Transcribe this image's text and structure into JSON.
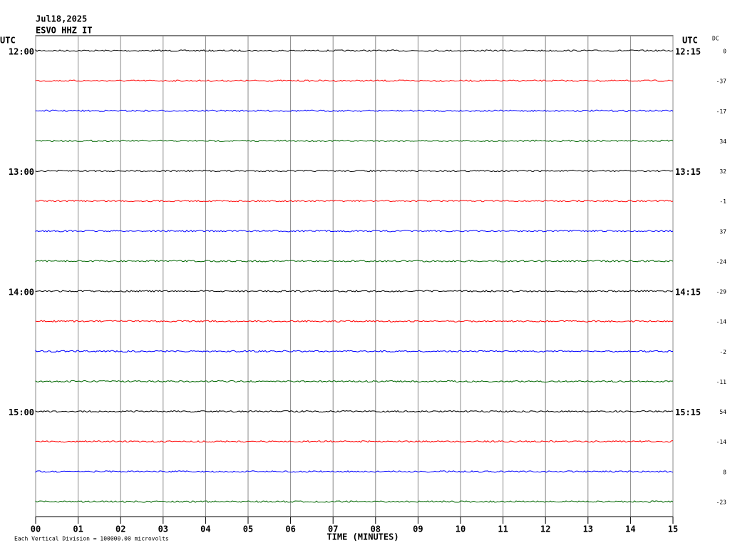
{
  "chart_data": {
    "type": "helicorder",
    "title": "Jul18,2025",
    "subtitle": "ESVO HHZ IT",
    "left_axis_label": "UTC",
    "right_axis_label": "UTC",
    "dc_label": "DC",
    "xlabel": "TIME (MINUTES)",
    "footnote": "Each Vertical Division = 100000.00 microvolts",
    "xlim": [
      0,
      15
    ],
    "xticks": [
      {
        "value": 0,
        "label": "00"
      },
      {
        "value": 1,
        "label": "01"
      },
      {
        "value": 2,
        "label": "02"
      },
      {
        "value": 3,
        "label": "03"
      },
      {
        "value": 4,
        "label": "04"
      },
      {
        "value": 5,
        "label": "05"
      },
      {
        "value": 6,
        "label": "06"
      },
      {
        "value": 7,
        "label": "07"
      },
      {
        "value": 8,
        "label": "08"
      },
      {
        "value": 9,
        "label": "09"
      },
      {
        "value": 10,
        "label": "10"
      },
      {
        "value": 11,
        "label": "11"
      },
      {
        "value": 12,
        "label": "12"
      },
      {
        "value": 13,
        "label": "13"
      },
      {
        "value": 14,
        "label": "14"
      },
      {
        "value": 15,
        "label": "15"
      }
    ],
    "grid": true,
    "rows": [
      {
        "left": "12:00",
        "right": "12:15",
        "dc": 0,
        "color": "#000000"
      },
      {
        "left": null,
        "right": null,
        "dc": -37,
        "color": "#ff0000"
      },
      {
        "left": null,
        "right": null,
        "dc": -17,
        "color": "#0000ff"
      },
      {
        "left": null,
        "right": null,
        "dc": 34,
        "color": "#006600"
      },
      {
        "left": "13:00",
        "right": "13:15",
        "dc": 32,
        "color": "#000000"
      },
      {
        "left": null,
        "right": null,
        "dc": -1,
        "color": "#ff0000"
      },
      {
        "left": null,
        "right": null,
        "dc": 37,
        "color": "#0000ff"
      },
      {
        "left": null,
        "right": null,
        "dc": -24,
        "color": "#006600"
      },
      {
        "left": "14:00",
        "right": "14:15",
        "dc": -29,
        "color": "#000000"
      },
      {
        "left": null,
        "right": null,
        "dc": -14,
        "color": "#ff0000"
      },
      {
        "left": null,
        "right": null,
        "dc": -2,
        "color": "#0000ff"
      },
      {
        "left": null,
        "right": null,
        "dc": -11,
        "color": "#006600"
      },
      {
        "left": "15:00",
        "right": "15:15",
        "dc": 54,
        "color": "#000000"
      },
      {
        "left": null,
        "right": null,
        "dc": -14,
        "color": "#ff0000"
      },
      {
        "left": null,
        "right": null,
        "dc": 8,
        "color": "#0000ff"
      },
      {
        "left": null,
        "right": null,
        "dc": -23,
        "color": "#006600"
      }
    ]
  }
}
